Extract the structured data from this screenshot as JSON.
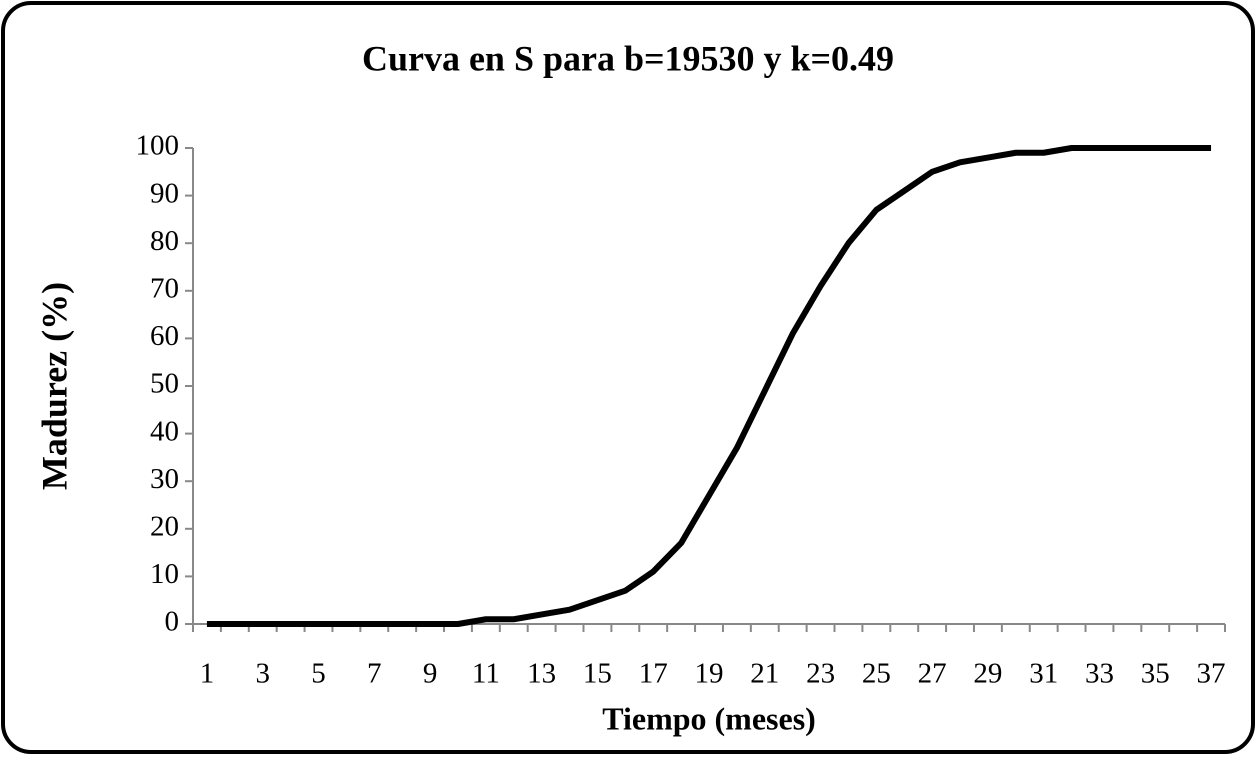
{
  "chart_data": {
    "type": "line",
    "title": "Curva en S para b=19530 y k=0.49",
    "x_label": "Tiempo (meses)",
    "y_label": "Madurez (%)",
    "categories": [
      1,
      null,
      3,
      null,
      5,
      null,
      7,
      null,
      9,
      null,
      11,
      null,
      13,
      null,
      15,
      null,
      17,
      null,
      19,
      null,
      21,
      null,
      23,
      null,
      25,
      null,
      27,
      null,
      29,
      null,
      31,
      null,
      33,
      null,
      35,
      null,
      37
    ],
    "values": [
      0,
      0,
      0,
      0,
      0,
      0,
      0,
      0,
      0,
      0,
      1,
      1,
      2,
      3,
      5,
      7,
      11,
      17,
      27,
      37,
      49,
      61,
      71,
      80,
      87,
      91,
      95,
      97,
      98,
      99,
      99,
      100,
      100,
      100,
      100,
      100,
      100
    ],
    "color": "#000000",
    "ylim": [
      0,
      100
    ],
    "yticks": [
      0,
      10,
      20,
      30,
      40,
      50,
      60,
      70,
      80,
      90,
      100
    ],
    "grid": false
  }
}
